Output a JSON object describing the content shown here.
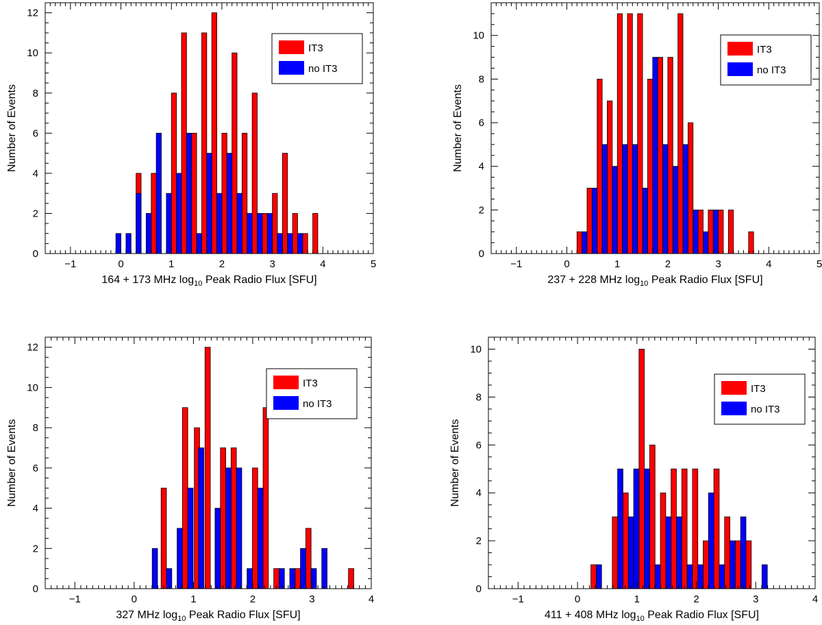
{
  "chart_data": [
    {
      "type": "bar",
      "title": "",
      "xlabel_prefix": "164 + 173 MHz log",
      "xlabel_sub": "10",
      "xlabel_suffix": " Peak Radio Flux [SFU]",
      "ylabel": "Number of Events",
      "xlim": [
        -1.5,
        5
      ],
      "ylim": [
        0,
        12.5
      ],
      "xticks": [
        -1,
        0,
        1,
        2,
        3,
        4,
        5
      ],
      "yticks": [
        0,
        2,
        4,
        6,
        8,
        10,
        12
      ],
      "bar_width": 0.1,
      "series": [
        {
          "name": "IT3",
          "color": "#ff0000",
          "x": [
            0.35,
            0.65,
            1.05,
            1.25,
            1.45,
            1.65,
            1.85,
            2.05,
            2.25,
            2.45,
            2.65,
            2.85,
            3.05,
            3.25,
            3.45,
            3.65,
            3.85
          ],
          "values": [
            4,
            4,
            8,
            11,
            6,
            11,
            12,
            6,
            10,
            6,
            8,
            2,
            3,
            5,
            2,
            1,
            2
          ]
        },
        {
          "name": "no IT3",
          "color": "#0000ff",
          "x": [
            -0.05,
            0.15,
            0.35,
            0.55,
            0.75,
            0.95,
            1.15,
            1.35,
            1.55,
            1.75,
            1.95,
            2.15,
            2.35,
            2.55,
            2.75,
            2.95,
            3.15,
            3.35,
            3.55
          ],
          "values": [
            1,
            1,
            3,
            2,
            6,
            3,
            4,
            6,
            1,
            5,
            3,
            5,
            3,
            2,
            2,
            2,
            1,
            1,
            1
          ]
        }
      ],
      "legend": {
        "position": "top-right",
        "labels": [
          "IT3",
          "no IT3"
        ]
      }
    },
    {
      "type": "bar",
      "title": "",
      "xlabel_prefix": "237 + 228 MHz log",
      "xlabel_sub": "10",
      "xlabel_suffix": " Peak Radio Flux [SFU]",
      "ylabel": "Number of Events",
      "xlim": [
        -1.5,
        5
      ],
      "ylim": [
        0,
        11.5
      ],
      "xticks": [
        -1,
        0,
        1,
        2,
        3,
        4,
        5
      ],
      "yticks": [
        0,
        2,
        4,
        6,
        8,
        10
      ],
      "bar_width": 0.1,
      "series": [
        {
          "name": "IT3",
          "color": "#ff0000",
          "x": [
            0.25,
            0.45,
            0.65,
            0.85,
            1.05,
            1.25,
            1.45,
            1.65,
            1.85,
            2.05,
            2.25,
            2.45,
            2.65,
            2.85,
            3.05,
            3.25,
            3.65
          ],
          "values": [
            1,
            3,
            8,
            7,
            11,
            11,
            11,
            8,
            9,
            9,
            11,
            6,
            2,
            2,
            2,
            2,
            1
          ]
        },
        {
          "name": "no IT3",
          "color": "#0000ff",
          "x": [
            0.35,
            0.55,
            0.75,
            0.95,
            1.15,
            1.35,
            1.55,
            1.75,
            1.95,
            2.15,
            2.35,
            2.55,
            2.75,
            2.95
          ],
          "values": [
            1,
            3,
            5,
            4,
            5,
            5,
            3,
            9,
            5,
            4,
            5,
            2,
            1,
            2
          ]
        }
      ],
      "legend": {
        "position": "top-right",
        "labels": [
          "IT3",
          "no IT3"
        ]
      }
    },
    {
      "type": "bar",
      "title": "",
      "xlabel_prefix": "327 MHz log",
      "xlabel_sub": "10",
      "xlabel_suffix": " Peak Radio Flux [SFU]",
      "ylabel": "Number of Events",
      "xlim": [
        -1.5,
        4
      ],
      "ylim": [
        0,
        12.5
      ],
      "xticks": [
        -1,
        0,
        1,
        2,
        3,
        4
      ],
      "yticks": [
        0,
        2,
        4,
        6,
        8,
        10,
        12
      ],
      "bar_width": 0.09,
      "series": [
        {
          "name": "IT3",
          "color": "#ff0000",
          "x": [
            0.5,
            0.86,
            1.06,
            1.24,
            1.5,
            1.68,
            2.04,
            2.22,
            2.4,
            2.76,
            2.94,
            3.66
          ],
          "values": [
            5,
            9,
            8,
            12,
            7,
            7,
            6,
            9,
            1,
            1,
            3,
            1
          ]
        },
        {
          "name": "no IT3",
          "color": "#0000ff",
          "x": [
            0.35,
            0.59,
            0.77,
            0.95,
            1.13,
            1.41,
            1.59,
            1.77,
            1.95,
            2.13,
            2.49,
            2.67,
            2.85,
            3.03,
            3.21
          ],
          "values": [
            2,
            1,
            3,
            5,
            7,
            4,
            6,
            6,
            1,
            5,
            1,
            1,
            2,
            1,
            2
          ]
        }
      ],
      "legend": {
        "position": "top-right",
        "labels": [
          "IT3",
          "no IT3"
        ]
      }
    },
    {
      "type": "bar",
      "title": "",
      "xlabel_prefix": "411 + 408 MHz log",
      "xlabel_sub": "10",
      "xlabel_suffix": " Peak Radio Flux [SFU]",
      "ylabel": "Number of Events",
      "xlim": [
        -1.5,
        4
      ],
      "ylim": [
        0,
        10.5
      ],
      "xticks": [
        -1,
        0,
        1,
        2,
        3,
        4
      ],
      "yticks": [
        0,
        2,
        4,
        6,
        8,
        10
      ],
      "bar_width": 0.09,
      "series": [
        {
          "name": "IT3",
          "color": "#ff0000",
          "x": [
            0.27,
            0.63,
            0.81,
            1.08,
            1.26,
            1.44,
            1.62,
            1.8,
            1.98,
            2.16,
            2.34,
            2.52,
            2.7,
            2.88
          ],
          "values": [
            1,
            3,
            4,
            10,
            6,
            4,
            5,
            5,
            5,
            2,
            5,
            3,
            2,
            2
          ]
        },
        {
          "name": "no IT3",
          "color": "#0000ff",
          "x": [
            0.36,
            0.72,
            0.9,
            0.99,
            1.17,
            1.35,
            1.53,
            1.71,
            1.89,
            2.07,
            2.25,
            2.43,
            2.61,
            2.79,
            3.15
          ],
          "values": [
            1,
            5,
            3,
            5,
            5,
            1,
            3,
            3,
            1,
            1,
            4,
            1,
            2,
            3,
            1
          ]
        }
      ],
      "legend": {
        "position": "top-right",
        "labels": [
          "IT3",
          "no IT3"
        ]
      }
    }
  ]
}
